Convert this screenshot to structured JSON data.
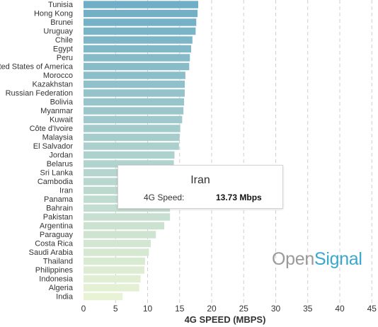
{
  "chart_data": {
    "type": "bar",
    "orientation": "horizontal",
    "categories": [
      "Tunisia",
      "Hong Kong",
      "Brunei",
      "Uruguay",
      "Chile",
      "Egypt",
      "Peru",
      "United States of America",
      "Morocco",
      "Kazakhstan",
      "Russian Federation",
      "Bolivia",
      "Myanmar",
      "Kuwait",
      "Côte d'Ivoire",
      "Malaysia",
      "El Salvador",
      "Jordan",
      "Belarus",
      "Sri Lanka",
      "Cambodia",
      "Iran",
      "Panama",
      "Bahrain",
      "Pakistan",
      "Argentina",
      "Paraguay",
      "Costa Rica",
      "Saudi Arabia",
      "Thailand",
      "Philippines",
      "Indonesia",
      "Algeria",
      "India"
    ],
    "values": [
      17.9,
      17.8,
      17.6,
      17.5,
      17.0,
      16.8,
      16.6,
      16.5,
      15.9,
      15.8,
      15.8,
      15.7,
      15.6,
      15.4,
      15.1,
      15.0,
      14.9,
      14.2,
      14.1,
      14.0,
      13.9,
      13.73,
      13.6,
      13.5,
      13.5,
      12.6,
      11.3,
      10.5,
      10.2,
      9.6,
      9.5,
      8.9,
      8.7,
      6.1
    ],
    "xlabel": "4G SPEED (MBPS)",
    "xlim": [
      0,
      45
    ],
    "xticks": [
      "0",
      "5",
      "10",
      "15",
      "20",
      "25",
      "30",
      "35",
      "40",
      "45"
    ],
    "grid": true,
    "colors": {
      "top": "#6faec6",
      "bottom": "#e8f2d4",
      "grid": "#cfcfcf",
      "axis_text": "#333333"
    }
  },
  "tooltip": {
    "title": "Iran",
    "label": "4G Speed:",
    "value": "13.73 Mbps"
  },
  "logo": {
    "part1": "Open",
    "part2": "Signal"
  }
}
